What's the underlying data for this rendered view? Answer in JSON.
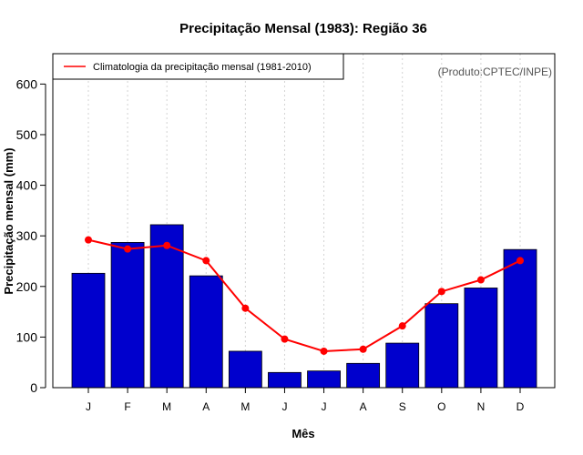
{
  "chart_data": {
    "type": "bar",
    "title": "Precipitação Mensal (1983): Região 36",
    "xlabel": "Mês",
    "ylabel": "Precipitação mensal (mm)",
    "ylim": [
      0,
      660
    ],
    "yticks": [
      0,
      100,
      200,
      300,
      400,
      500,
      600
    ],
    "grid": "vertical dotted",
    "credit": "(Produto:CPTEC/INPE)",
    "categories": [
      "J",
      "F",
      "M",
      "A",
      "M",
      "J",
      "J",
      "A",
      "S",
      "O",
      "N",
      "D"
    ],
    "series": [
      {
        "name": "Precipitação mensal 1983",
        "kind": "bar",
        "color": "#0000CD",
        "values": [
          226,
          287,
          322,
          221,
          72,
          30,
          33,
          48,
          88,
          166,
          197,
          273
        ]
      },
      {
        "name": "Climatologia da precipitação mensal (1981-2010)",
        "kind": "line",
        "color": "#FF0000",
        "values": [
          292,
          274,
          281,
          251,
          157,
          96,
          72,
          76,
          122,
          190,
          213,
          251
        ]
      }
    ],
    "legend": {
      "position": "top-left",
      "entries": [
        "Climatologia da precipitação mensal (1981-2010)"
      ]
    }
  }
}
